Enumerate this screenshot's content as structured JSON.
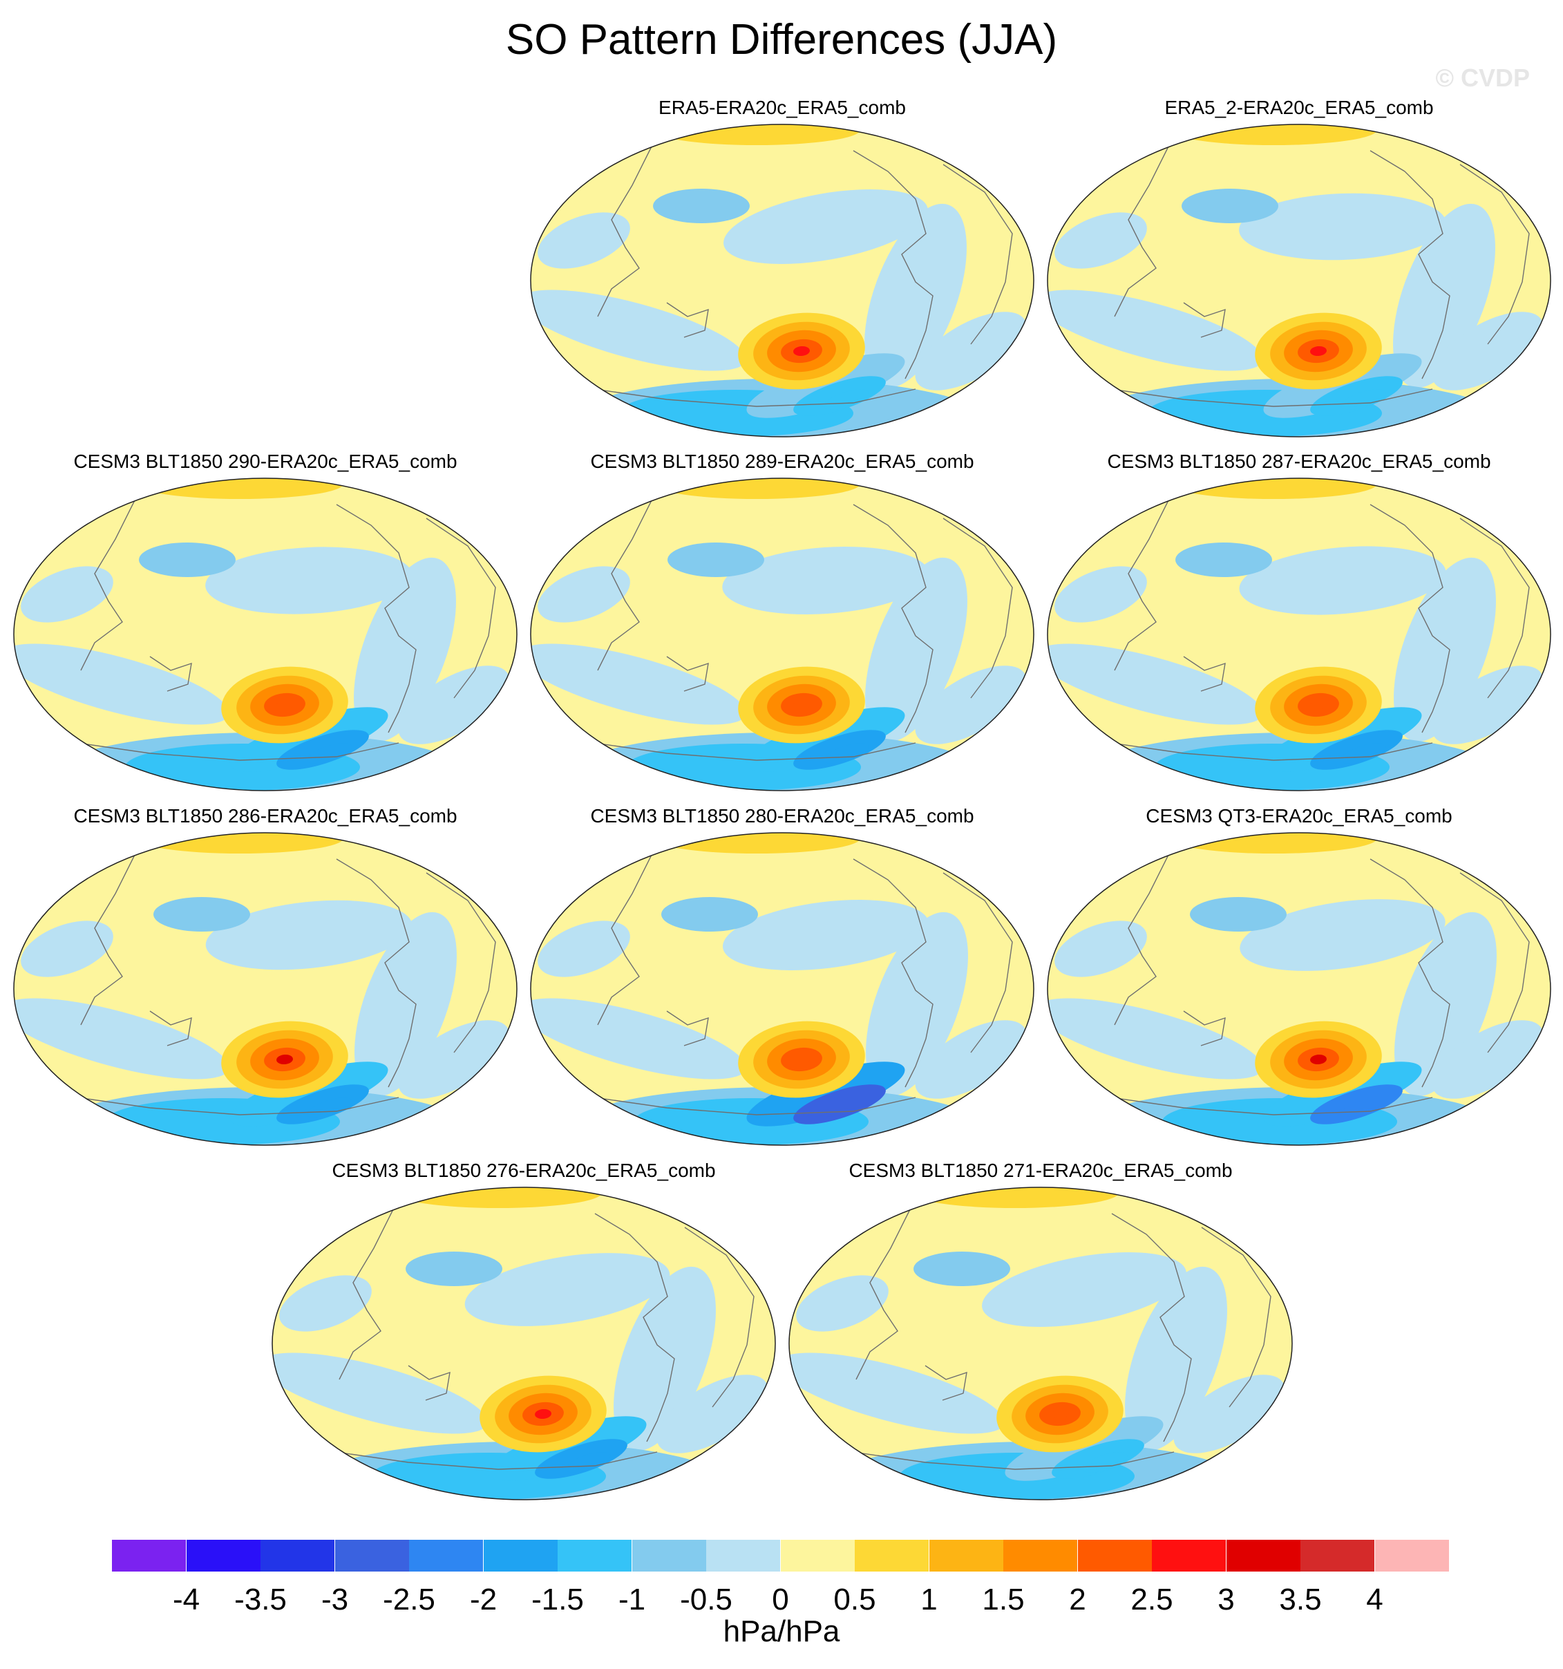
{
  "title": "SO Pattern Differences (JJA)",
  "watermark": "© CVDP",
  "panels": [
    {
      "label": "ERA5-ERA20c_ERA5_comb",
      "max_anomaly": 2.5,
      "min_anomaly": -1.5
    },
    {
      "label": "ERA5_2-ERA20c_ERA5_comb",
      "max_anomaly": 2.5,
      "min_anomaly": -1.5
    },
    {
      "label": "CESM3 BLT1850 290-ERA20c_ERA5_comb",
      "max_anomaly": 2.0,
      "min_anomaly": -2.0
    },
    {
      "label": "CESM3 BLT1850 289-ERA20c_ERA5_comb",
      "max_anomaly": 2.0,
      "min_anomaly": -2.0
    },
    {
      "label": "CESM3 BLT1850 287-ERA20c_ERA5_comb",
      "max_anomaly": 2.0,
      "min_anomaly": -2.0
    },
    {
      "label": "CESM3 BLT1850 286-ERA20c_ERA5_comb",
      "max_anomaly": 3.0,
      "min_anomaly": -2.0
    },
    {
      "label": "CESM3 BLT1850 280-ERA20c_ERA5_comb",
      "max_anomaly": 2.0,
      "min_anomaly": -3.0
    },
    {
      "label": "CESM3 QT3-ERA20c_ERA5_comb",
      "max_anomaly": 3.0,
      "min_anomaly": -2.5
    },
    {
      "label": "CESM3 BLT1850 276-ERA20c_ERA5_comb",
      "max_anomaly": 2.5,
      "min_anomaly": -2.0
    },
    {
      "label": "CESM3 BLT1850 271-ERA20c_ERA5_comb",
      "max_anomaly": 2.0,
      "min_anomaly": -1.5
    }
  ],
  "colorbar": {
    "units": "hPa/hPa",
    "colors": [
      "#7b22f0",
      "#2a10f8",
      "#2235e8",
      "#3a62e0",
      "#2e86f2",
      "#1fa3f2",
      "#35c3f7",
      "#83cbee",
      "#b9e1f3",
      "#fdf59d",
      "#fdd835",
      "#fdb414",
      "#ff8b00",
      "#ff5a00",
      "#ff1010",
      "#e00000",
      "#d52a2a",
      "#fdb5b5"
    ],
    "tick_labels": [
      "-4",
      "-3.5",
      "-3",
      "-2.5",
      "-2",
      "-1.5",
      "-1",
      "-0.5",
      "0",
      "0.5",
      "1",
      "1.5",
      "2",
      "2.5",
      "3",
      "3.5",
      "4"
    ]
  }
}
